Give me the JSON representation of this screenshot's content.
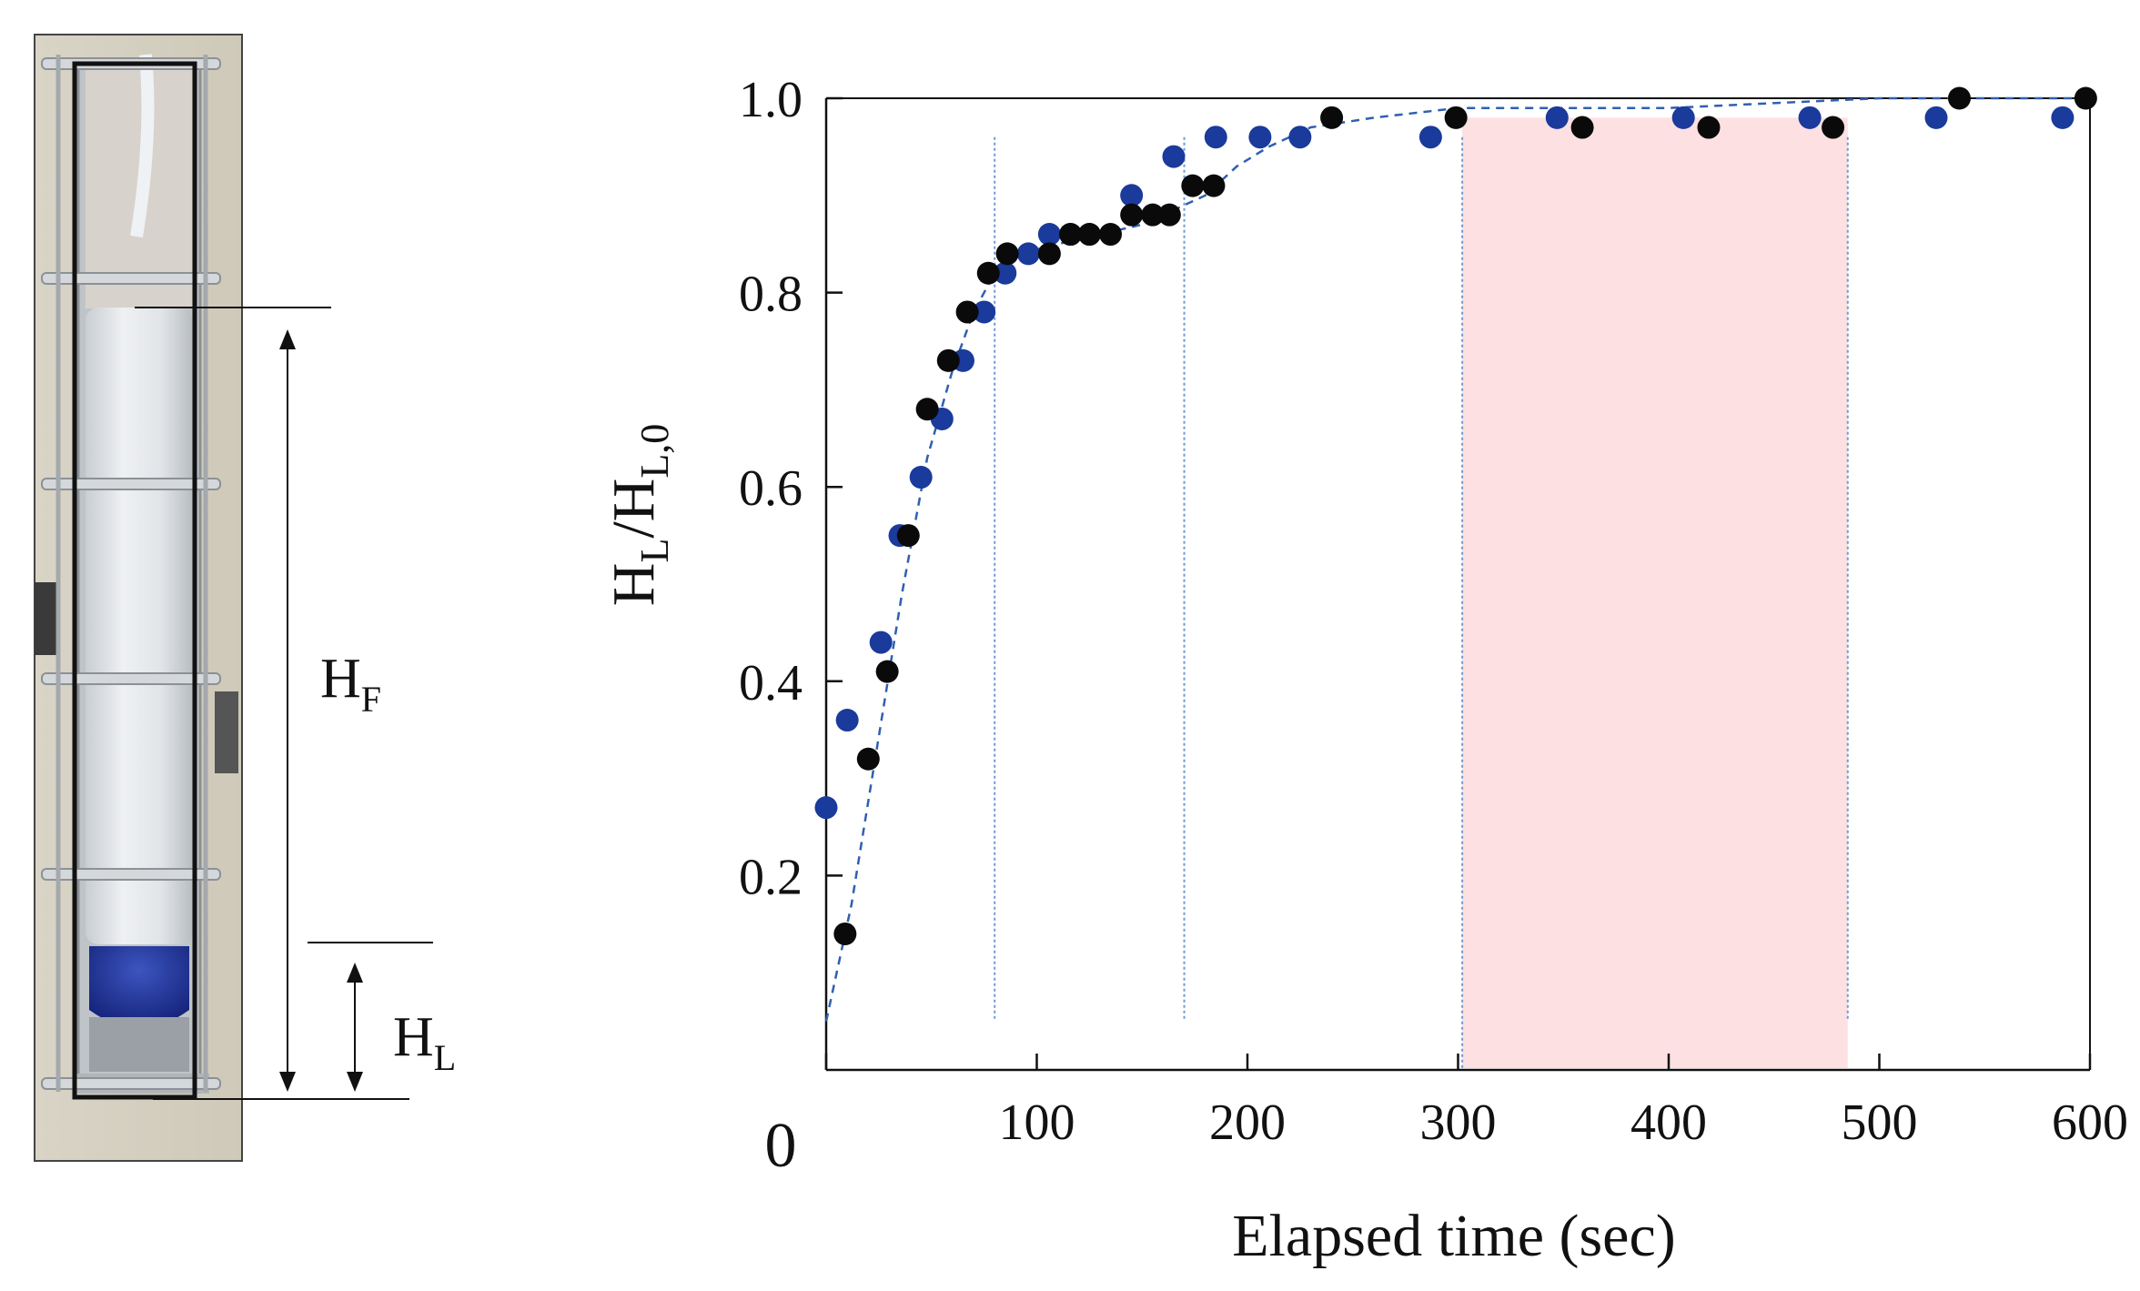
{
  "photo": {
    "subject": "foam column"
  },
  "diagram": {
    "foam_height_label": "H",
    "foam_height_subscript": "F",
    "liquid_height_label": "H",
    "liquid_height_subscript": "L"
  },
  "chart_data": {
    "type": "scatter",
    "title": "",
    "xlabel": "Elapsed time (sec)",
    "ylabel_parts": {
      "base": "H",
      "sub1": "L",
      "slash": "/H",
      "sub2": "L,0"
    },
    "xlim": [
      0,
      600
    ],
    "ylim": [
      0.0,
      1.0
    ],
    "x_ticks": [
      0,
      100,
      200,
      300,
      400,
      500,
      600
    ],
    "x_tick_labels": [
      "0",
      "100",
      "200",
      "300",
      "400",
      "500",
      "600"
    ],
    "y_ticks": [
      0.2,
      0.4,
      0.6,
      0.8,
      1.0
    ],
    "y_tick_labels": [
      "0.2",
      "0.4",
      "0.6",
      "0.8",
      "1.0"
    ],
    "grid": false,
    "colors": {
      "series_black": "#0a0a0a",
      "series_blue": "#1a3a9c",
      "fit_line": "#3060b0",
      "highlight": "#fde0e2",
      "guide_line": "#6f9ad8"
    },
    "series": [
      {
        "name": "black",
        "points": [
          [
            9,
            0.14
          ],
          [
            20,
            0.32
          ],
          [
            29,
            0.41
          ],
          [
            39,
            0.55
          ],
          [
            48,
            0.68
          ],
          [
            58,
            0.73
          ],
          [
            67,
            0.78
          ],
          [
            77,
            0.82
          ],
          [
            86,
            0.84
          ],
          [
            106,
            0.84
          ],
          [
            116,
            0.86
          ],
          [
            125,
            0.86
          ],
          [
            135,
            0.86
          ],
          [
            145,
            0.88
          ],
          [
            155,
            0.88
          ],
          [
            163,
            0.88
          ],
          [
            174,
            0.91
          ],
          [
            184,
            0.91
          ],
          [
            240,
            0.98
          ],
          [
            299,
            0.98
          ],
          [
            359,
            0.97
          ],
          [
            419,
            0.97
          ],
          [
            478,
            0.97
          ],
          [
            538,
            1.0
          ],
          [
            598,
            1.0
          ]
        ]
      },
      {
        "name": "blue",
        "points": [
          [
            0,
            0.27
          ],
          [
            10,
            0.36
          ],
          [
            26,
            0.44
          ],
          [
            35,
            0.55
          ],
          [
            45,
            0.61
          ],
          [
            55,
            0.67
          ],
          [
            65,
            0.73
          ],
          [
            75,
            0.78
          ],
          [
            85,
            0.82
          ],
          [
            96,
            0.84
          ],
          [
            106,
            0.86
          ],
          [
            116,
            0.86
          ],
          [
            125,
            0.86
          ],
          [
            145,
            0.9
          ],
          [
            165,
            0.94
          ],
          [
            185,
            0.96
          ],
          [
            206,
            0.96
          ],
          [
            225,
            0.96
          ],
          [
            287,
            0.96
          ],
          [
            347,
            0.98
          ],
          [
            407,
            0.98
          ],
          [
            467,
            0.98
          ],
          [
            527,
            0.98
          ],
          [
            587,
            0.98
          ]
        ]
      }
    ],
    "fit_curve": [
      [
        0,
        0.05
      ],
      [
        12,
        0.17
      ],
      [
        24,
        0.33
      ],
      [
        36,
        0.49
      ],
      [
        48,
        0.63
      ],
      [
        60,
        0.72
      ],
      [
        70,
        0.78
      ],
      [
        80,
        0.82
      ],
      [
        92,
        0.84
      ],
      [
        110,
        0.85
      ],
      [
        130,
        0.86
      ],
      [
        150,
        0.87
      ],
      [
        170,
        0.89
      ],
      [
        180,
        0.9
      ],
      [
        195,
        0.93
      ],
      [
        210,
        0.95
      ],
      [
        230,
        0.97
      ],
      [
        260,
        0.98
      ],
      [
        300,
        0.99
      ],
      [
        400,
        0.99
      ],
      [
        500,
        1.0
      ],
      [
        600,
        1.0
      ]
    ],
    "highlight_region": [
      302,
      485
    ],
    "guide_lines_x": [
      80,
      170,
      485
    ]
  }
}
